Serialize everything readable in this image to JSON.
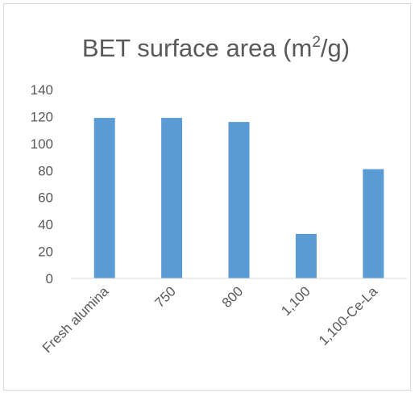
{
  "chart_data": {
    "type": "bar",
    "title": "BET surface area (m",
    "title_superscript": "2",
    "title_suffix": "/g)",
    "categories": [
      "Fresh alumina",
      "750",
      "800",
      "1,100",
      "1,100-Ce-La"
    ],
    "values": [
      119,
      119,
      116,
      33,
      81
    ],
    "yticks": [
      "0",
      "20",
      "40",
      "60",
      "80",
      "100",
      "120",
      "140"
    ],
    "ylim": [
      0,
      140
    ],
    "xlabel": "",
    "ylabel": "",
    "grid": false,
    "legend": "none",
    "bar_color": "#5b9bd5",
    "axis_color": "#d9d9d9"
  }
}
